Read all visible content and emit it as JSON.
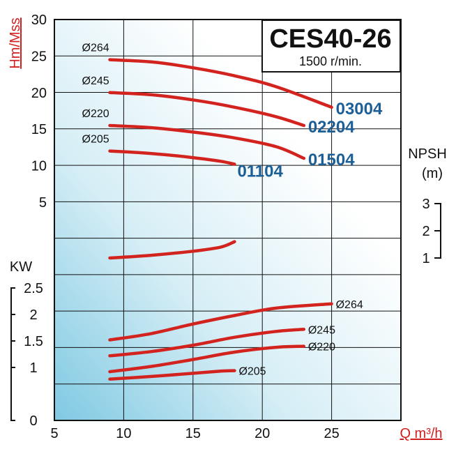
{
  "chart_data": {
    "type": "line",
    "title": "CES40-26",
    "subtitle": "1500 r/min.",
    "xlabel": "Q m³/h",
    "ylabel": "Hm/Mss",
    "power_label": "KW",
    "npsh_label": [
      "NPSH",
      "(m)"
    ],
    "x_ticks": [
      "5",
      "10",
      "15",
      "20",
      "25"
    ],
    "xlim": [
      5,
      30
    ],
    "head_ticks": [
      "5",
      "10",
      "15",
      "20",
      "25",
      "30"
    ],
    "head_ylim": [
      0,
      30
    ],
    "power_ticks": [
      "0",
      "1",
      "1.5",
      "2",
      "2.5"
    ],
    "npsh_ticks": [
      "1",
      "2",
      "3"
    ],
    "grid": true,
    "colors": {
      "curve": "#d3231f",
      "model_label": "#1c5f96",
      "axis_title": "#d01f1f"
    },
    "head_curves": [
      {
        "name": "Ø264",
        "model": "03004",
        "x": [
          9,
          12,
          15,
          18,
          21,
          25
        ],
        "y": [
          24.5,
          24.2,
          23.4,
          22.3,
          20.8,
          18.0
        ]
      },
      {
        "name": "Ø245",
        "model": "02204",
        "x": [
          9,
          12,
          15,
          18,
          21,
          23
        ],
        "y": [
          20.0,
          19.7,
          19.0,
          18.0,
          16.7,
          15.5
        ]
      },
      {
        "name": "Ø220",
        "model": "01504",
        "x": [
          9,
          12,
          15,
          18,
          21,
          23
        ],
        "y": [
          15.5,
          15.2,
          14.6,
          13.8,
          12.6,
          11.0
        ]
      },
      {
        "name": "Ø205",
        "model": "01104",
        "x": [
          9,
          11,
          13,
          15,
          17,
          18
        ],
        "y": [
          12.0,
          11.8,
          11.5,
          11.1,
          10.6,
          10.2
        ]
      }
    ],
    "npsh_curve": {
      "x": [
        9,
        12,
        15,
        17,
        18
      ],
      "y": [
        1.0,
        1.1,
        1.25,
        1.4,
        1.6
      ]
    },
    "power_curves": [
      {
        "name": "Ø264",
        "x": [
          9,
          12,
          15,
          18,
          21,
          25
        ],
        "y": [
          1.52,
          1.64,
          1.82,
          1.98,
          2.12,
          2.2
        ]
      },
      {
        "name": "Ø245",
        "x": [
          9,
          12,
          15,
          18,
          21,
          23
        ],
        "y": [
          1.22,
          1.3,
          1.42,
          1.57,
          1.68,
          1.72
        ]
      },
      {
        "name": "Ø220",
        "x": [
          9,
          12,
          15,
          18,
          21,
          23
        ],
        "y": [
          0.92,
          1.02,
          1.15,
          1.29,
          1.38,
          1.4
        ]
      },
      {
        "name": "Ø205",
        "x": [
          9,
          12,
          15,
          17,
          18
        ],
        "y": [
          0.78,
          0.83,
          0.89,
          0.93,
          0.94
        ]
      }
    ]
  }
}
